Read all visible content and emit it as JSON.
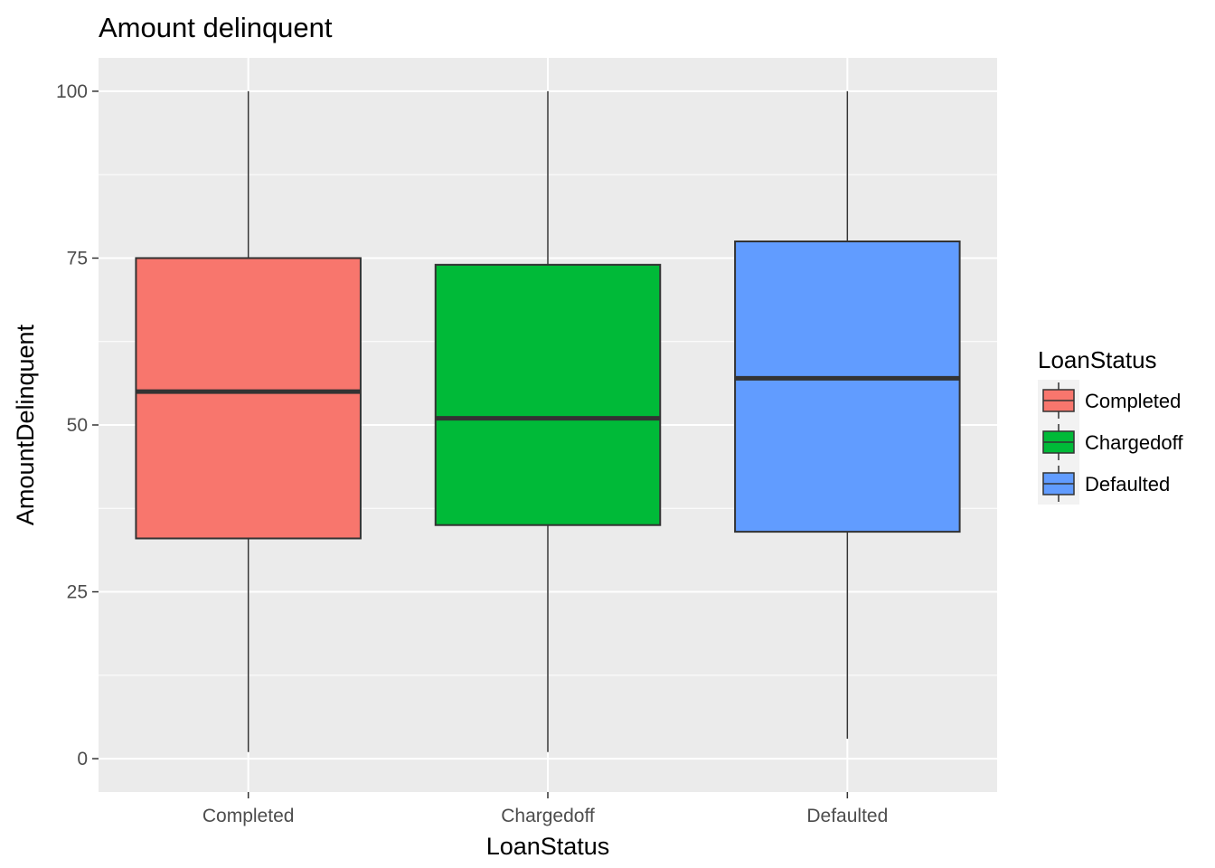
{
  "chart_data": {
    "type": "boxplot",
    "title": "Amount delinquent",
    "xlabel": "LoanStatus",
    "ylabel": "AmountDelinquent",
    "ylim": [
      -5,
      105
    ],
    "yticks": [
      0,
      25,
      50,
      75,
      100
    ],
    "yticks_minor": [
      12.5,
      37.5,
      62.5,
      87.5
    ],
    "grid": true,
    "legend": {
      "title": "LoanStatus",
      "position": "right"
    },
    "categories": [
      "Completed",
      "Chargedoff",
      "Defaulted"
    ],
    "series": [
      {
        "name": "Completed",
        "color": "#F8766D",
        "min": 1,
        "q1": 33,
        "median": 55,
        "q3": 75,
        "max": 100
      },
      {
        "name": "Chargedoff",
        "color": "#00BA38",
        "min": 1,
        "q1": 35,
        "median": 51,
        "q3": 74,
        "max": 100
      },
      {
        "name": "Defaulted",
        "color": "#619CFF",
        "min": 3,
        "q1": 34,
        "median": 57,
        "q3": 77.5,
        "max": 100
      }
    ],
    "panel_color": "#EBEBEB",
    "grid_color": "#FFFFFF"
  }
}
